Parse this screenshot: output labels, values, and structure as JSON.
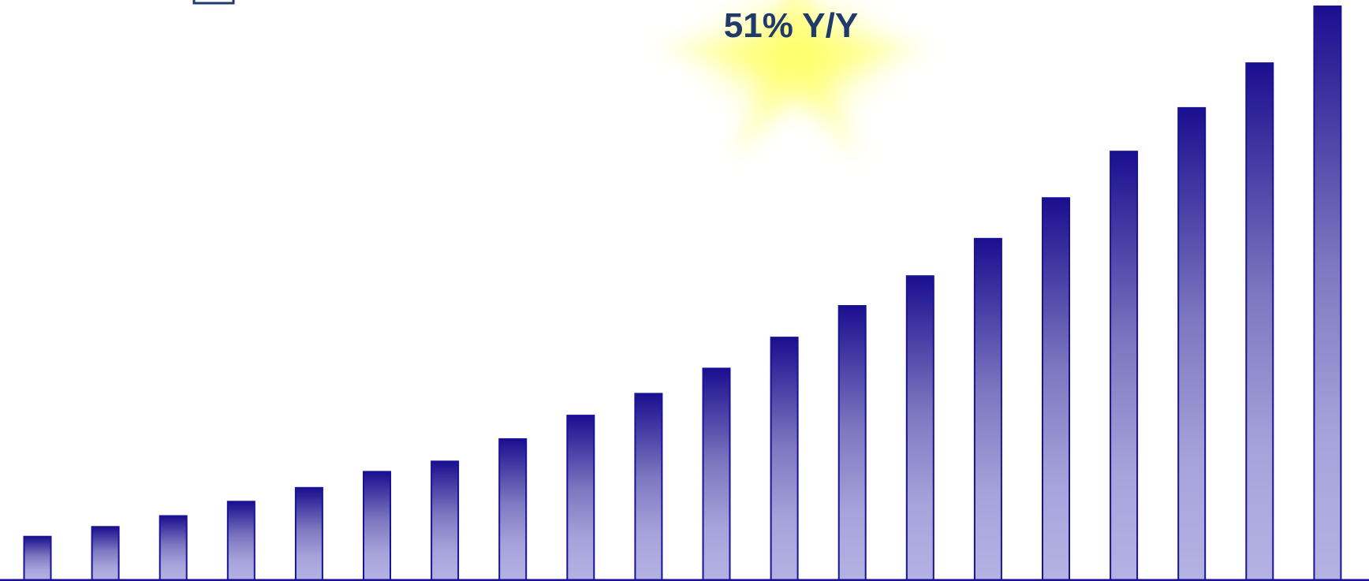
{
  "chart_data": {
    "type": "bar",
    "title": "",
    "xlabel": "",
    "ylabel": "",
    "annotation": "51% Y/Y",
    "ylim": [
      0,
      100
    ],
    "grid": false,
    "values": [
      7.6,
      9.3,
      11.2,
      13.7,
      16.1,
      18.9,
      20.7,
      24.6,
      28.7,
      32.5,
      36.9,
      42.3,
      47.8,
      53.0,
      59.5,
      66.6,
      74.7,
      82.3,
      90.1,
      100.0
    ]
  },
  "colors": {
    "bar_top": "#1a0f8f",
    "bar_mid": "#8c88c8",
    "bar_bottom": "#b4b2e3",
    "bar_outline": "#1a1296",
    "baseline": "#1a1296",
    "annotation_text": "#1f3a6b",
    "glow": "#ffff66"
  }
}
